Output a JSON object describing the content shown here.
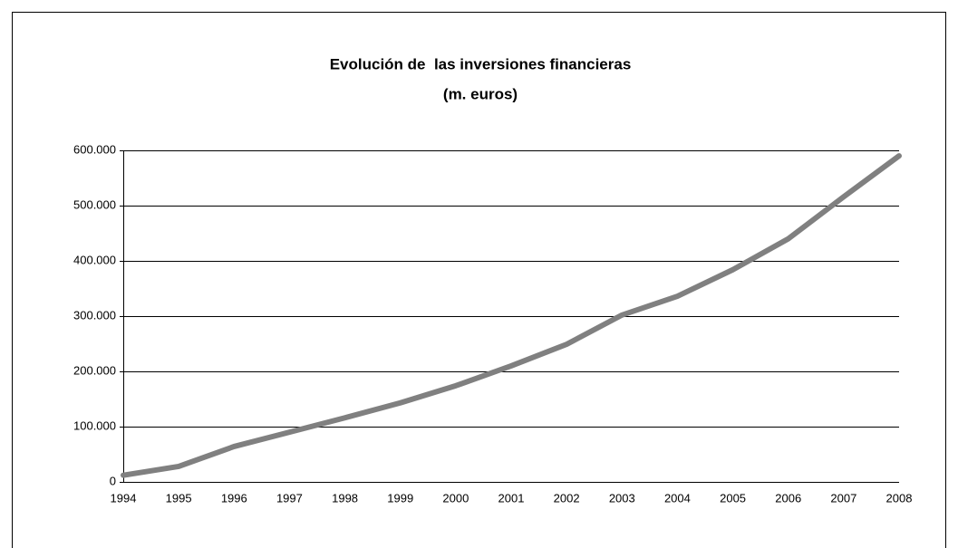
{
  "chart_data": {
    "type": "line",
    "title": "Evolución de  las inversiones financieras",
    "subtitle": "(m. euros)",
    "categories": [
      "1994",
      "1995",
      "1996",
      "1997",
      "1998",
      "1999",
      "2000",
      "2001",
      "2002",
      "2003",
      "2004",
      "2005",
      "2006",
      "2007",
      "2008"
    ],
    "series": [
      {
        "name": "Inversiones financieras",
        "color": "#808080",
        "values": [
          12000,
          28000,
          64000,
          90000,
          116000,
          143000,
          174000,
          210000,
          249000,
          302000,
          336000,
          384000,
          440000,
          516000,
          590000
        ]
      }
    ],
    "ylim": [
      0,
      600000
    ],
    "yticks": [
      0,
      {
        "value": 100000,
        "label": "100.000"
      },
      {
        "value": 200000,
        "label": "200.000"
      },
      {
        "value": 300000,
        "label": "300.000"
      },
      {
        "value": 400000,
        "label": "400.000"
      },
      {
        "value": 500000,
        "label": "500.000"
      },
      {
        "value": 600000,
        "label": "600.000"
      }
    ],
    "grid": true
  }
}
